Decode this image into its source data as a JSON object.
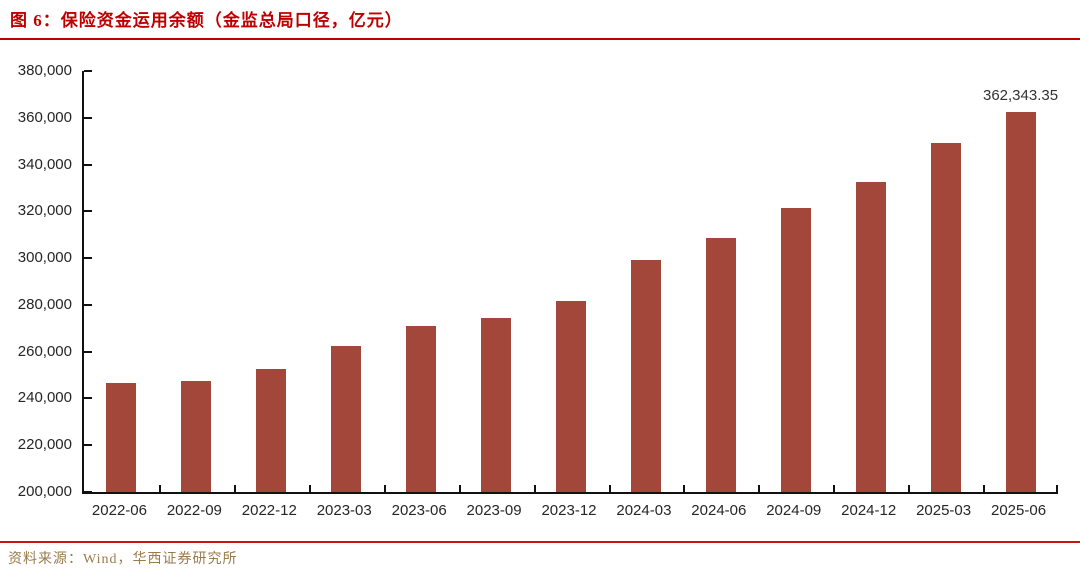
{
  "header": {
    "title": "图 6：保险资金运用余额（金监总局口径，亿元）"
  },
  "footer": {
    "source": "资料来源：Wind，华西证券研究所"
  },
  "colors": {
    "bar": "#A3473A",
    "title_red": "#C00000",
    "rule_red": "#C81414",
    "source_gold": "#9A7B4B",
    "axis": "#111111",
    "tick_label": "#262626",
    "value_label": "#333333"
  },
  "chart_data": {
    "type": "bar",
    "title": "保险资金运用余额（金监总局口径，亿元）",
    "xlabel": "",
    "ylabel": "亿元",
    "grid": false,
    "legend": "none",
    "ylim": [
      200000,
      380000
    ],
    "ytick_step": 20000,
    "ytick_labels": [
      "380,000",
      "360,000",
      "340,000",
      "320,000",
      "300,000",
      "280,000",
      "260,000",
      "240,000",
      "220,000",
      "200,000"
    ],
    "categories": [
      "2022-06",
      "2022-09",
      "2022-12",
      "2023-03",
      "2023-06",
      "2023-09",
      "2023-12",
      "2024-03",
      "2024-06",
      "2024-09",
      "2024-12",
      "2025-03",
      "2025-06"
    ],
    "values": [
      246500,
      247600,
      252500,
      262500,
      271000,
      274500,
      281500,
      299400,
      308700,
      321400,
      332600,
      349300,
      362343.35
    ],
    "annotation": {
      "index": 12,
      "text": "362,343.35"
    }
  }
}
